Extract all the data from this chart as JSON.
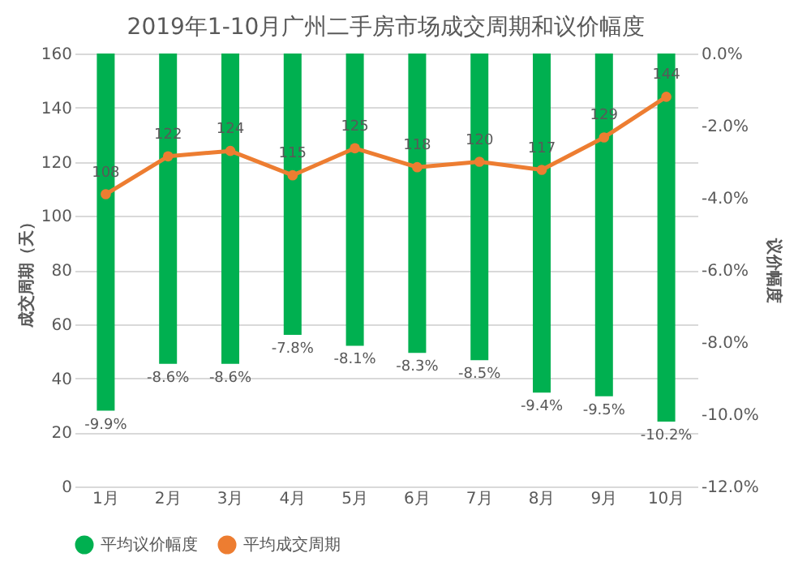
{
  "chart_data": {
    "type": "bar",
    "title": "2019年1-10月广州二手房市场成交周期和议价幅度",
    "ylabel": "成交周期（天）",
    "y2label": "议价幅度",
    "categories": [
      "1月",
      "2月",
      "3月",
      "4月",
      "5月",
      "6月",
      "7月",
      "8月",
      "9月",
      "10月"
    ],
    "series": [
      {
        "name": "平均议价幅度",
        "type": "bar",
        "axis": "y2",
        "color": "#00b050",
        "values": [
          -9.9,
          -8.6,
          -8.6,
          -7.8,
          -8.1,
          -8.3,
          -8.5,
          -9.4,
          -9.5,
          -10.2
        ],
        "value_labels": [
          "-9.9%",
          "-8.6%",
          "-8.6%",
          "-7.8%",
          "-8.1%",
          "-8.3%",
          "-8.5%",
          "-9.4%",
          "-9.5%",
          "-10.2%"
        ]
      },
      {
        "name": "平均成交周期",
        "type": "line",
        "color": "#ed7d31",
        "values": [
          108,
          122,
          124,
          115,
          125,
          118,
          120,
          117,
          129,
          144
        ],
        "value_labels": [
          "108",
          "122",
          "124",
          "115",
          "125",
          "118",
          "120",
          "117",
          "129",
          "144"
        ]
      }
    ],
    "ylim": [
      0,
      160
    ],
    "yticks": [
      0,
      20,
      40,
      60,
      80,
      100,
      120,
      140,
      160
    ],
    "y2lim": [
      -12,
      0
    ],
    "y2ticks": [
      {
        "value": 0,
        "label": "0.0%"
      },
      {
        "value": -2,
        "label": "-2.0%"
      },
      {
        "value": -4,
        "label": "-4.0%"
      },
      {
        "value": -6,
        "label": "-6.0%"
      },
      {
        "value": -8,
        "label": "-8.0%"
      },
      {
        "value": -10,
        "label": "-10.0%"
      },
      {
        "value": -12,
        "label": "-12.0%"
      }
    ],
    "grid": "y",
    "legend": "bottom",
    "marker": "circle",
    "line_style": "solid"
  }
}
